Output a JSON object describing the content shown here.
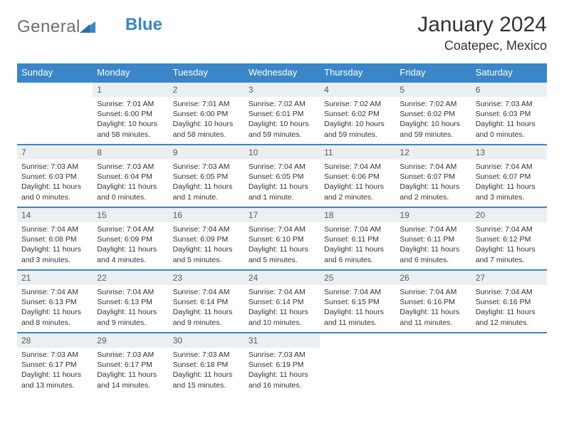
{
  "logo": {
    "text": "General",
    "accent": "Blue"
  },
  "title": "January 2024",
  "location": "Coatepec, Mexico",
  "colors": {
    "header_bg": "#3a86c8",
    "header_text": "#ffffff",
    "daynum_bg": "#eceff1",
    "row_border": "#3a86c8",
    "logo_gray": "#6e6e6e",
    "logo_blue": "#3a86c8"
  },
  "day_headers": [
    "Sunday",
    "Monday",
    "Tuesday",
    "Wednesday",
    "Thursday",
    "Friday",
    "Saturday"
  ],
  "weeks": [
    {
      "cells": [
        {
          "day": "",
          "sunrise": "",
          "sunset": "",
          "daylight": ""
        },
        {
          "day": "1",
          "sunrise": "Sunrise: 7:01 AM",
          "sunset": "Sunset: 6:00 PM",
          "daylight": "Daylight: 10 hours and 58 minutes."
        },
        {
          "day": "2",
          "sunrise": "Sunrise: 7:01 AM",
          "sunset": "Sunset: 6:00 PM",
          "daylight": "Daylight: 10 hours and 58 minutes."
        },
        {
          "day": "3",
          "sunrise": "Sunrise: 7:02 AM",
          "sunset": "Sunset: 6:01 PM",
          "daylight": "Daylight: 10 hours and 59 minutes."
        },
        {
          "day": "4",
          "sunrise": "Sunrise: 7:02 AM",
          "sunset": "Sunset: 6:02 PM",
          "daylight": "Daylight: 10 hours and 59 minutes."
        },
        {
          "day": "5",
          "sunrise": "Sunrise: 7:02 AM",
          "sunset": "Sunset: 6:02 PM",
          "daylight": "Daylight: 10 hours and 59 minutes."
        },
        {
          "day": "6",
          "sunrise": "Sunrise: 7:03 AM",
          "sunset": "Sunset: 6:03 PM",
          "daylight": "Daylight: 11 hours and 0 minutes."
        }
      ]
    },
    {
      "cells": [
        {
          "day": "7",
          "sunrise": "Sunrise: 7:03 AM",
          "sunset": "Sunset: 6:03 PM",
          "daylight": "Daylight: 11 hours and 0 minutes."
        },
        {
          "day": "8",
          "sunrise": "Sunrise: 7:03 AM",
          "sunset": "Sunset: 6:04 PM",
          "daylight": "Daylight: 11 hours and 0 minutes."
        },
        {
          "day": "9",
          "sunrise": "Sunrise: 7:03 AM",
          "sunset": "Sunset: 6:05 PM",
          "daylight": "Daylight: 11 hours and 1 minute."
        },
        {
          "day": "10",
          "sunrise": "Sunrise: 7:04 AM",
          "sunset": "Sunset: 6:05 PM",
          "daylight": "Daylight: 11 hours and 1 minute."
        },
        {
          "day": "11",
          "sunrise": "Sunrise: 7:04 AM",
          "sunset": "Sunset: 6:06 PM",
          "daylight": "Daylight: 11 hours and 2 minutes."
        },
        {
          "day": "12",
          "sunrise": "Sunrise: 7:04 AM",
          "sunset": "Sunset: 6:07 PM",
          "daylight": "Daylight: 11 hours and 2 minutes."
        },
        {
          "day": "13",
          "sunrise": "Sunrise: 7:04 AM",
          "sunset": "Sunset: 6:07 PM",
          "daylight": "Daylight: 11 hours and 3 minutes."
        }
      ]
    },
    {
      "cells": [
        {
          "day": "14",
          "sunrise": "Sunrise: 7:04 AM",
          "sunset": "Sunset: 6:08 PM",
          "daylight": "Daylight: 11 hours and 3 minutes."
        },
        {
          "day": "15",
          "sunrise": "Sunrise: 7:04 AM",
          "sunset": "Sunset: 6:09 PM",
          "daylight": "Daylight: 11 hours and 4 minutes."
        },
        {
          "day": "16",
          "sunrise": "Sunrise: 7:04 AM",
          "sunset": "Sunset: 6:09 PM",
          "daylight": "Daylight: 11 hours and 5 minutes."
        },
        {
          "day": "17",
          "sunrise": "Sunrise: 7:04 AM",
          "sunset": "Sunset: 6:10 PM",
          "daylight": "Daylight: 11 hours and 5 minutes."
        },
        {
          "day": "18",
          "sunrise": "Sunrise: 7:04 AM",
          "sunset": "Sunset: 6:11 PM",
          "daylight": "Daylight: 11 hours and 6 minutes."
        },
        {
          "day": "19",
          "sunrise": "Sunrise: 7:04 AM",
          "sunset": "Sunset: 6:11 PM",
          "daylight": "Daylight: 11 hours and 6 minutes."
        },
        {
          "day": "20",
          "sunrise": "Sunrise: 7:04 AM",
          "sunset": "Sunset: 6:12 PM",
          "daylight": "Daylight: 11 hours and 7 minutes."
        }
      ]
    },
    {
      "cells": [
        {
          "day": "21",
          "sunrise": "Sunrise: 7:04 AM",
          "sunset": "Sunset: 6:13 PM",
          "daylight": "Daylight: 11 hours and 8 minutes."
        },
        {
          "day": "22",
          "sunrise": "Sunrise: 7:04 AM",
          "sunset": "Sunset: 6:13 PM",
          "daylight": "Daylight: 11 hours and 9 minutes."
        },
        {
          "day": "23",
          "sunrise": "Sunrise: 7:04 AM",
          "sunset": "Sunset: 6:14 PM",
          "daylight": "Daylight: 11 hours and 9 minutes."
        },
        {
          "day": "24",
          "sunrise": "Sunrise: 7:04 AM",
          "sunset": "Sunset: 6:14 PM",
          "daylight": "Daylight: 11 hours and 10 minutes."
        },
        {
          "day": "25",
          "sunrise": "Sunrise: 7:04 AM",
          "sunset": "Sunset: 6:15 PM",
          "daylight": "Daylight: 11 hours and 11 minutes."
        },
        {
          "day": "26",
          "sunrise": "Sunrise: 7:04 AM",
          "sunset": "Sunset: 6:16 PM",
          "daylight": "Daylight: 11 hours and 11 minutes."
        },
        {
          "day": "27",
          "sunrise": "Sunrise: 7:04 AM",
          "sunset": "Sunset: 6:16 PM",
          "daylight": "Daylight: 11 hours and 12 minutes."
        }
      ]
    },
    {
      "cells": [
        {
          "day": "28",
          "sunrise": "Sunrise: 7:03 AM",
          "sunset": "Sunset: 6:17 PM",
          "daylight": "Daylight: 11 hours and 13 minutes."
        },
        {
          "day": "29",
          "sunrise": "Sunrise: 7:03 AM",
          "sunset": "Sunset: 6:17 PM",
          "daylight": "Daylight: 11 hours and 14 minutes."
        },
        {
          "day": "30",
          "sunrise": "Sunrise: 7:03 AM",
          "sunset": "Sunset: 6:18 PM",
          "daylight": "Daylight: 11 hours and 15 minutes."
        },
        {
          "day": "31",
          "sunrise": "Sunrise: 7:03 AM",
          "sunset": "Sunset: 6:19 PM",
          "daylight": "Daylight: 11 hours and 16 minutes."
        },
        {
          "day": "",
          "sunrise": "",
          "sunset": "",
          "daylight": ""
        },
        {
          "day": "",
          "sunrise": "",
          "sunset": "",
          "daylight": ""
        },
        {
          "day": "",
          "sunrise": "",
          "sunset": "",
          "daylight": ""
        }
      ]
    }
  ]
}
